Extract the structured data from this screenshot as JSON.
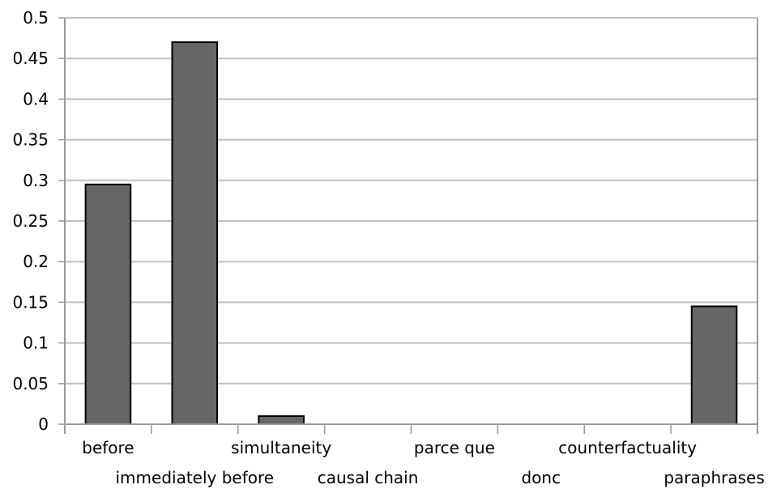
{
  "chart_data": {
    "type": "bar",
    "categories": [
      "before",
      "immediately before",
      "simultaneity",
      "causal chain",
      "parce que",
      "donc",
      "counterfactuality",
      "paraphrases"
    ],
    "values": [
      0.295,
      0.47,
      0.01,
      0,
      0,
      0,
      0,
      0.145
    ],
    "ylim": [
      0,
      0.5
    ],
    "yticks": [
      "0",
      "0.05",
      "0.1",
      "0.15",
      "0.2",
      "0.25",
      "0.3",
      "0.35",
      "0.4",
      "0.45",
      "0.5"
    ],
    "grid": true,
    "colors": {
      "bar": "#666666",
      "bar_edge": "#000000",
      "grid": "#c0c0c0",
      "axis": "#9a9a9a"
    }
  }
}
